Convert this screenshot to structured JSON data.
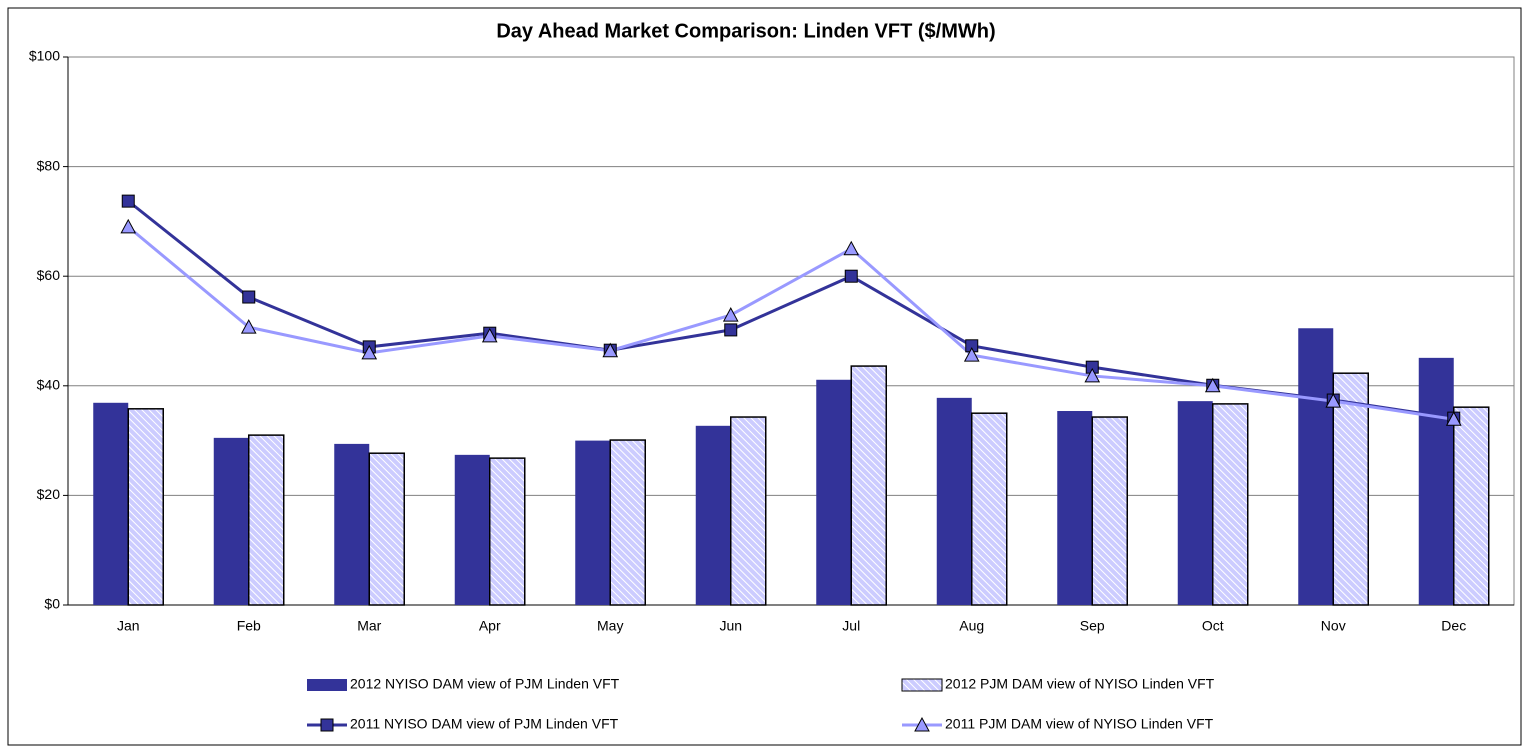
{
  "chart_data": {
    "type": "bar",
    "title": "Day Ahead Market Comparison: Linden VFT ($/MWh)",
    "categories": [
      "Jan",
      "Feb",
      "Mar",
      "Apr",
      "May",
      "Jun",
      "Jul",
      "Aug",
      "Sep",
      "Oct",
      "Nov",
      "Dec"
    ],
    "series": [
      {
        "name": "2012 NYISO DAM view of PJM Linden VFT",
        "type": "bar",
        "color": "#333399",
        "values": [
          36.9,
          30.5,
          29.4,
          27.4,
          30.0,
          32.7,
          41.1,
          37.8,
          35.4,
          37.2,
          50.5,
          45.1
        ]
      },
      {
        "name": "2012 PJM DAM view of NYISO Linden VFT",
        "type": "bar",
        "color": "#ccccff",
        "hatch": true,
        "values": [
          35.8,
          31.0,
          27.7,
          26.8,
          30.1,
          34.3,
          43.6,
          35.0,
          34.3,
          36.7,
          42.3,
          36.1
        ]
      },
      {
        "name": "2011 NYISO DAM view of PJM Linden VFT",
        "type": "line",
        "color": "#333399",
        "marker": "square",
        "values": [
          73.7,
          56.2,
          47.1,
          49.6,
          46.5,
          50.2,
          60.0,
          47.3,
          43.4,
          40.1,
          37.4,
          34.1
        ]
      },
      {
        "name": "2011 PJM DAM view of NYISO Linden VFT",
        "type": "line",
        "color": "#9999ff",
        "marker": "triangle",
        "values": [
          69.0,
          50.7,
          46.0,
          49.1,
          46.4,
          52.9,
          65.0,
          45.6,
          41.8,
          40.0,
          37.2,
          33.9
        ]
      }
    ],
    "ylim": [
      0,
      100
    ],
    "yticks": [
      {
        "value": 0,
        "label": "$0"
      },
      {
        "value": 20,
        "label": "$20"
      },
      {
        "value": 40,
        "label": "$40"
      },
      {
        "value": 60,
        "label": "$60"
      },
      {
        "value": 80,
        "label": "$80"
      },
      {
        "value": 100,
        "label": "$100"
      }
    ],
    "grid": true,
    "legend": "bottom"
  }
}
